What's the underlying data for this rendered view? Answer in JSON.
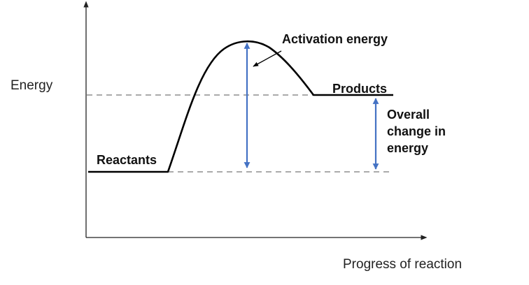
{
  "labels": {
    "y_axis": "Energy",
    "x_axis": "Progress of reaction",
    "activation": "Activation energy",
    "products": "Products",
    "reactants": "Reactants",
    "overall_line1": "Overall",
    "overall_line2": "change in",
    "overall_line3": "energy"
  },
  "colors": {
    "curve": "#000000",
    "axis": "#222222",
    "dashed": "#aaaaaa",
    "arrow": "#4472c4"
  }
}
